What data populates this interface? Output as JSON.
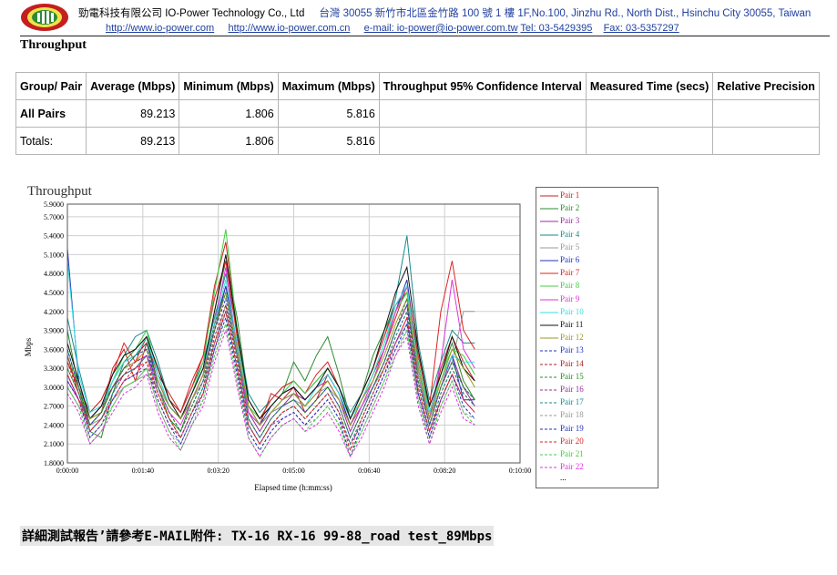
{
  "header": {
    "company_line": "勁電科技有限公司 IO-Power Technology Co., Ltd",
    "address_line": "台灣 30055 新竹市北區金竹路 100 號 1 樓 1F,No.100, Jinzhu Rd., North Dist., Hsinchu City 30055, Taiwan",
    "url1": "http://www.io-power.com",
    "url2": "http://www.io-power.com.cn",
    "email": "e-mail: io-power@io-power.com.tw",
    "tel": "Tel: 03-5429395",
    "fax": "Fax: 03-5357297"
  },
  "section_title": "Throughput",
  "table": {
    "headers": [
      "Group/ Pair",
      "Average (Mbps)",
      "Minimum (Mbps)",
      "Maximum (Mbps)",
      "Throughput 95% Confidence Interval",
      "Measured Time (secs)",
      "Relative Precision"
    ],
    "rows": [
      {
        "label": "All Pairs",
        "average": "89.213",
        "minimum": "1.806",
        "maximum": "5.816",
        "ci": "",
        "time": "",
        "precision": ""
      },
      {
        "label": "Totals:",
        "average": "89.213",
        "minimum": "1.806",
        "maximum": "5.816",
        "ci": "",
        "time": "",
        "precision": ""
      }
    ]
  },
  "chart_data": {
    "type": "line",
    "title": "Throughput",
    "xlabel": "Elapsed time (h:mm:ss)",
    "ylabel": "Mbps",
    "y_ticks": [
      "1.8000",
      "2.1000",
      "2.4000",
      "2.7000",
      "3.0000",
      "3.3000",
      "3.6000",
      "3.9000",
      "4.2000",
      "4.5000",
      "4.8000",
      "5.1000",
      "5.4000",
      "5.7000",
      "5.9000"
    ],
    "x_ticks": [
      "0:00:00",
      "0:01:40",
      "0:03:20",
      "0:05:00",
      "0:06:40",
      "0:08:20",
      "0:10:00"
    ],
    "ylim": [
      1.8,
      5.9
    ],
    "xlim_seconds": [
      0,
      600
    ],
    "grid": true,
    "legend_position": "right",
    "x": [
      0,
      15,
      30,
      45,
      60,
      75,
      90,
      105,
      120,
      135,
      150,
      165,
      180,
      195,
      210,
      225,
      240,
      255,
      270,
      285,
      300,
      315,
      330,
      345,
      360,
      375,
      390,
      405,
      420,
      435,
      450,
      465,
      480,
      495,
      510,
      525,
      540
    ],
    "series": [
      {
        "name": "Pair 1",
        "color": "#cc2222",
        "dash": false,
        "values": [
          3.5,
          2.9,
          2.4,
          2.6,
          3.3,
          3.6,
          3.1,
          3.7,
          3.2,
          2.9,
          2.6,
          3.1,
          3.5,
          4.6,
          5.3,
          3.9,
          2.7,
          2.4,
          2.9,
          2.8,
          3.0,
          2.6,
          2.8,
          3.2,
          2.9,
          2.4,
          2.8,
          3.2,
          3.6,
          4.1,
          4.6,
          3.3,
          2.5,
          3.3,
          3.8,
          3.4,
          3.1
        ]
      },
      {
        "name": "Pair 2",
        "color": "#2e8b2e",
        "dash": false,
        "values": [
          3.9,
          3.0,
          2.3,
          2.2,
          2.9,
          3.4,
          3.6,
          3.8,
          3.0,
          2.5,
          2.3,
          2.8,
          3.2,
          4.2,
          5.0,
          4.1,
          2.8,
          2.5,
          2.7,
          2.9,
          3.4,
          3.1,
          3.5,
          3.8,
          3.2,
          2.5,
          2.9,
          3.5,
          3.9,
          4.3,
          4.5,
          3.6,
          2.6,
          3.2,
          3.7,
          3.1,
          2.8
        ]
      },
      {
        "name": "Pair 3",
        "color": "#9b2c9b",
        "dash": false,
        "values": [
          3.2,
          2.8,
          2.5,
          2.7,
          3.0,
          3.2,
          3.3,
          3.5,
          3.1,
          2.7,
          2.5,
          2.9,
          3.3,
          4.0,
          4.6,
          3.7,
          2.6,
          2.3,
          2.6,
          2.7,
          2.9,
          2.8,
          3.0,
          3.1,
          2.8,
          2.3,
          2.7,
          3.0,
          3.4,
          3.9,
          4.3,
          3.2,
          2.4,
          3.0,
          3.5,
          3.0,
          2.7
        ]
      },
      {
        "name": "Pair 4",
        "color": "#1a8a8a",
        "dash": false,
        "values": [
          4.1,
          3.3,
          2.6,
          2.8,
          3.2,
          3.5,
          3.8,
          3.9,
          3.4,
          2.8,
          2.6,
          3.0,
          3.4,
          4.1,
          4.8,
          3.9,
          2.9,
          2.6,
          2.8,
          3.0,
          3.1,
          2.9,
          3.1,
          3.3,
          3.0,
          2.6,
          2.9,
          3.3,
          3.8,
          4.4,
          5.4,
          3.7,
          2.8,
          3.4,
          3.9,
          3.7,
          3.7
        ]
      },
      {
        "name": "Pair 5",
        "color": "#999999",
        "dash": false,
        "values": [
          3.0,
          2.7,
          2.4,
          2.5,
          2.8,
          3.0,
          3.1,
          3.2,
          3.0,
          2.7,
          2.5,
          2.8,
          3.1,
          3.7,
          4.3,
          3.5,
          2.6,
          2.4,
          2.6,
          2.7,
          2.8,
          2.7,
          2.9,
          3.0,
          2.8,
          2.4,
          2.7,
          3.0,
          3.3,
          3.7,
          4.0,
          3.2,
          2.5,
          3.0,
          3.4,
          4.2,
          4.2
        ]
      },
      {
        "name": "Pair 6",
        "color": "#2233bb",
        "dash": false,
        "values": [
          5.2,
          3.1,
          2.5,
          2.7,
          3.1,
          3.4,
          3.5,
          3.7,
          3.1,
          2.7,
          2.5,
          2.8,
          3.2,
          3.9,
          4.6,
          3.7,
          2.7,
          2.4,
          2.7,
          2.9,
          3.0,
          2.8,
          3.0,
          3.2,
          2.9,
          2.4,
          2.8,
          3.1,
          3.6,
          4.2,
          4.7,
          3.4,
          2.6,
          3.1,
          3.5,
          2.8,
          2.8
        ]
      },
      {
        "name": "Pair 7",
        "color": "#e02020",
        "dash": false,
        "values": [
          3.4,
          3.0,
          2.6,
          2.8,
          3.2,
          3.7,
          3.4,
          3.8,
          3.3,
          2.8,
          2.6,
          3.0,
          3.5,
          4.4,
          5.0,
          3.8,
          2.8,
          2.5,
          2.8,
          3.0,
          3.1,
          2.9,
          3.2,
          3.4,
          3.0,
          2.5,
          2.9,
          3.3,
          3.8,
          4.3,
          4.6,
          3.5,
          2.7,
          4.2,
          5.0,
          3.9,
          3.6
        ]
      },
      {
        "name": "Pair 8",
        "color": "#44cc44",
        "dash": false,
        "values": [
          3.6,
          3.0,
          2.5,
          2.6,
          3.1,
          3.5,
          3.6,
          3.9,
          3.2,
          2.7,
          2.5,
          2.9,
          3.4,
          4.5,
          5.5,
          3.9,
          2.7,
          2.5,
          2.7,
          2.9,
          3.1,
          2.9,
          3.1,
          3.3,
          3.0,
          2.5,
          2.8,
          3.2,
          3.7,
          4.2,
          4.5,
          3.4,
          2.6,
          3.2,
          3.6,
          3.5,
          3.2
        ]
      },
      {
        "name": "Pair 9",
        "color": "#dd33dd",
        "dash": false,
        "values": [
          3.1,
          2.8,
          2.4,
          2.6,
          3.0,
          3.3,
          3.4,
          3.5,
          3.0,
          2.6,
          2.4,
          2.8,
          3.2,
          4.0,
          4.9,
          3.6,
          2.6,
          2.4,
          2.6,
          2.8,
          2.9,
          2.7,
          2.9,
          3.1,
          2.8,
          2.4,
          2.7,
          3.1,
          3.6,
          4.2,
          4.6,
          3.3,
          2.5,
          3.4,
          4.7,
          3.6,
          3.3
        ]
      },
      {
        "name": "Pair 10",
        "color": "#33e0e0",
        "dash": false,
        "values": [
          5.0,
          3.2,
          2.6,
          2.7,
          3.1,
          3.4,
          3.5,
          3.8,
          3.2,
          2.7,
          2.5,
          2.9,
          3.3,
          4.0,
          4.7,
          3.7,
          2.7,
          2.4,
          2.6,
          2.8,
          2.9,
          2.7,
          3.0,
          3.2,
          2.9,
          2.5,
          2.8,
          3.2,
          3.7,
          4.3,
          4.6,
          3.3,
          2.6,
          3.1,
          3.5,
          3.4,
          3.4
        ]
      },
      {
        "name": "Pair 11",
        "color": "#111111",
        "dash": false,
        "values": [
          3.7,
          3.1,
          2.5,
          2.7,
          3.2,
          3.5,
          3.6,
          3.8,
          3.3,
          2.8,
          2.5,
          2.9,
          3.3,
          4.2,
          5.1,
          3.9,
          2.8,
          2.5,
          2.7,
          2.9,
          3.0,
          2.8,
          3.0,
          3.3,
          3.0,
          2.5,
          2.9,
          3.3,
          3.9,
          4.5,
          4.9,
          3.6,
          2.7,
          3.2,
          3.8,
          3.3,
          3.1
        ]
      },
      {
        "name": "Pair 12",
        "color": "#999922",
        "dash": false,
        "values": [
          3.3,
          2.9,
          2.5,
          2.6,
          3.0,
          3.3,
          3.4,
          3.6,
          3.1,
          2.7,
          2.5,
          2.8,
          3.2,
          3.9,
          4.5,
          3.6,
          2.7,
          2.4,
          2.6,
          2.8,
          2.9,
          2.7,
          2.9,
          3.1,
          2.8,
          2.4,
          2.8,
          3.1,
          3.5,
          4.0,
          4.4,
          3.3,
          2.5,
          3.1,
          3.6,
          3.3,
          3.0
        ]
      },
      {
        "name": "Pair 13",
        "color": "#2233bb",
        "dash": true,
        "values": [
          3.6,
          3.0,
          2.4,
          2.6,
          3.0,
          3.3,
          3.5,
          3.6,
          3.0,
          2.6,
          2.3,
          2.7,
          3.1,
          3.9,
          4.4,
          3.5,
          2.5,
          2.2,
          2.5,
          2.7,
          2.8,
          2.6,
          2.8,
          3.0,
          2.7,
          2.2,
          2.6,
          3.0,
          3.4,
          3.9,
          4.3,
          3.1,
          2.4,
          3.0,
          3.4,
          3.0,
          2.8
        ]
      },
      {
        "name": "Pair 14",
        "color": "#aa2222",
        "dash": true,
        "values": [
          3.4,
          2.9,
          2.3,
          2.5,
          2.9,
          3.2,
          3.4,
          3.5,
          2.9,
          2.5,
          2.2,
          2.6,
          3.0,
          3.8,
          4.3,
          3.4,
          2.4,
          2.1,
          2.4,
          2.6,
          2.7,
          2.5,
          2.7,
          2.9,
          2.6,
          2.1,
          2.5,
          2.9,
          3.3,
          3.8,
          4.2,
          3.0,
          2.3,
          2.9,
          3.3,
          2.9,
          2.7
        ]
      },
      {
        "name": "Pair 15",
        "color": "#2e8b2e",
        "dash": true,
        "values": [
          3.5,
          3.0,
          2.4,
          2.6,
          3.0,
          3.3,
          3.5,
          3.7,
          3.0,
          2.6,
          2.3,
          2.7,
          3.1,
          4.0,
          4.5,
          3.5,
          2.5,
          2.2,
          2.5,
          2.7,
          2.8,
          2.6,
          2.8,
          3.0,
          2.7,
          2.2,
          2.6,
          3.0,
          3.4,
          3.9,
          4.4,
          3.1,
          2.4,
          3.0,
          3.4,
          3.0,
          2.8
        ]
      },
      {
        "name": "Pair 16",
        "color": "#9b2c9b",
        "dash": true,
        "values": [
          3.2,
          2.8,
          2.3,
          2.5,
          2.8,
          3.1,
          3.2,
          3.4,
          2.8,
          2.4,
          2.2,
          2.6,
          2.9,
          3.6,
          4.2,
          3.3,
          2.4,
          2.1,
          2.4,
          2.5,
          2.6,
          2.4,
          2.6,
          2.8,
          2.5,
          2.1,
          2.4,
          2.8,
          3.2,
          3.7,
          4.1,
          2.9,
          2.3,
          2.8,
          3.2,
          2.8,
          2.6
        ]
      },
      {
        "name": "Pair 17",
        "color": "#1a8a8a",
        "dash": true,
        "values": [
          3.3,
          2.9,
          2.3,
          2.5,
          2.9,
          3.2,
          3.3,
          3.5,
          2.9,
          2.5,
          2.2,
          2.6,
          3.0,
          3.7,
          4.2,
          3.3,
          2.4,
          2.1,
          2.4,
          2.6,
          2.7,
          2.5,
          2.7,
          2.9,
          2.6,
          2.1,
          2.5,
          2.9,
          3.3,
          3.8,
          4.2,
          3.0,
          2.3,
          2.9,
          3.3,
          2.9,
          2.7
        ]
      },
      {
        "name": "Pair 18",
        "color": "#999999",
        "dash": true,
        "values": [
          3.0,
          2.7,
          2.2,
          2.4,
          2.7,
          3.0,
          3.1,
          3.3,
          2.7,
          2.3,
          2.1,
          2.5,
          2.8,
          3.5,
          4.0,
          3.1,
          2.3,
          2.0,
          2.3,
          2.5,
          2.6,
          2.4,
          2.5,
          2.7,
          2.4,
          2.0,
          2.3,
          2.7,
          3.1,
          3.6,
          3.9,
          2.8,
          2.2,
          2.7,
          3.1,
          2.6,
          2.5
        ]
      },
      {
        "name": "Pair 19",
        "color": "#2233bb",
        "dash": true,
        "values": [
          3.1,
          2.8,
          2.2,
          2.4,
          2.8,
          3.1,
          3.2,
          3.3,
          2.8,
          2.4,
          2.1,
          2.5,
          2.9,
          3.6,
          4.1,
          3.2,
          2.3,
          2.0,
          2.3,
          2.5,
          2.6,
          2.4,
          2.6,
          2.8,
          2.5,
          1.9,
          2.4,
          2.8,
          3.2,
          3.6,
          4.0,
          2.9,
          2.2,
          2.8,
          3.2,
          2.7,
          2.5
        ]
      },
      {
        "name": "Pair 20",
        "color": "#e02020",
        "dash": true,
        "values": [
          3.2,
          2.8,
          2.3,
          2.5,
          2.8,
          3.1,
          3.3,
          3.4,
          2.9,
          2.5,
          2.2,
          2.6,
          2.9,
          3.7,
          4.2,
          3.3,
          2.4,
          2.1,
          2.4,
          2.6,
          2.7,
          2.5,
          2.7,
          2.9,
          2.6,
          2.0,
          2.5,
          2.9,
          3.3,
          3.7,
          4.1,
          3.0,
          2.3,
          2.8,
          3.2,
          2.8,
          2.6
        ]
      },
      {
        "name": "Pair 21",
        "color": "#44cc44",
        "dash": true,
        "values": [
          3.0,
          2.7,
          2.1,
          2.3,
          2.7,
          3.0,
          3.1,
          3.3,
          2.7,
          2.3,
          2.0,
          2.4,
          2.8,
          3.5,
          4.0,
          3.1,
          2.2,
          1.9,
          2.2,
          2.4,
          2.5,
          2.3,
          2.5,
          2.7,
          2.4,
          1.9,
          2.3,
          2.7,
          3.1,
          3.5,
          3.9,
          2.8,
          2.1,
          2.7,
          3.1,
          2.6,
          2.4
        ]
      },
      {
        "name": "Pair 22",
        "color": "#dd33dd",
        "dash": true,
        "values": [
          2.9,
          2.6,
          2.1,
          2.3,
          2.6,
          2.9,
          3.0,
          3.2,
          2.6,
          2.2,
          2.0,
          2.4,
          2.7,
          3.4,
          3.9,
          3.0,
          2.2,
          1.9,
          2.2,
          2.4,
          2.5,
          2.3,
          2.4,
          2.6,
          2.3,
          1.9,
          2.2,
          2.6,
          3.0,
          3.5,
          3.8,
          2.7,
          2.1,
          2.6,
          3.0,
          2.5,
          2.4
        ]
      }
    ],
    "legend_more": "..."
  },
  "footnote": "詳細測試報告’請參考E-MAIL附件: TX-16 RX-16 99-88_road test_89Mbps"
}
